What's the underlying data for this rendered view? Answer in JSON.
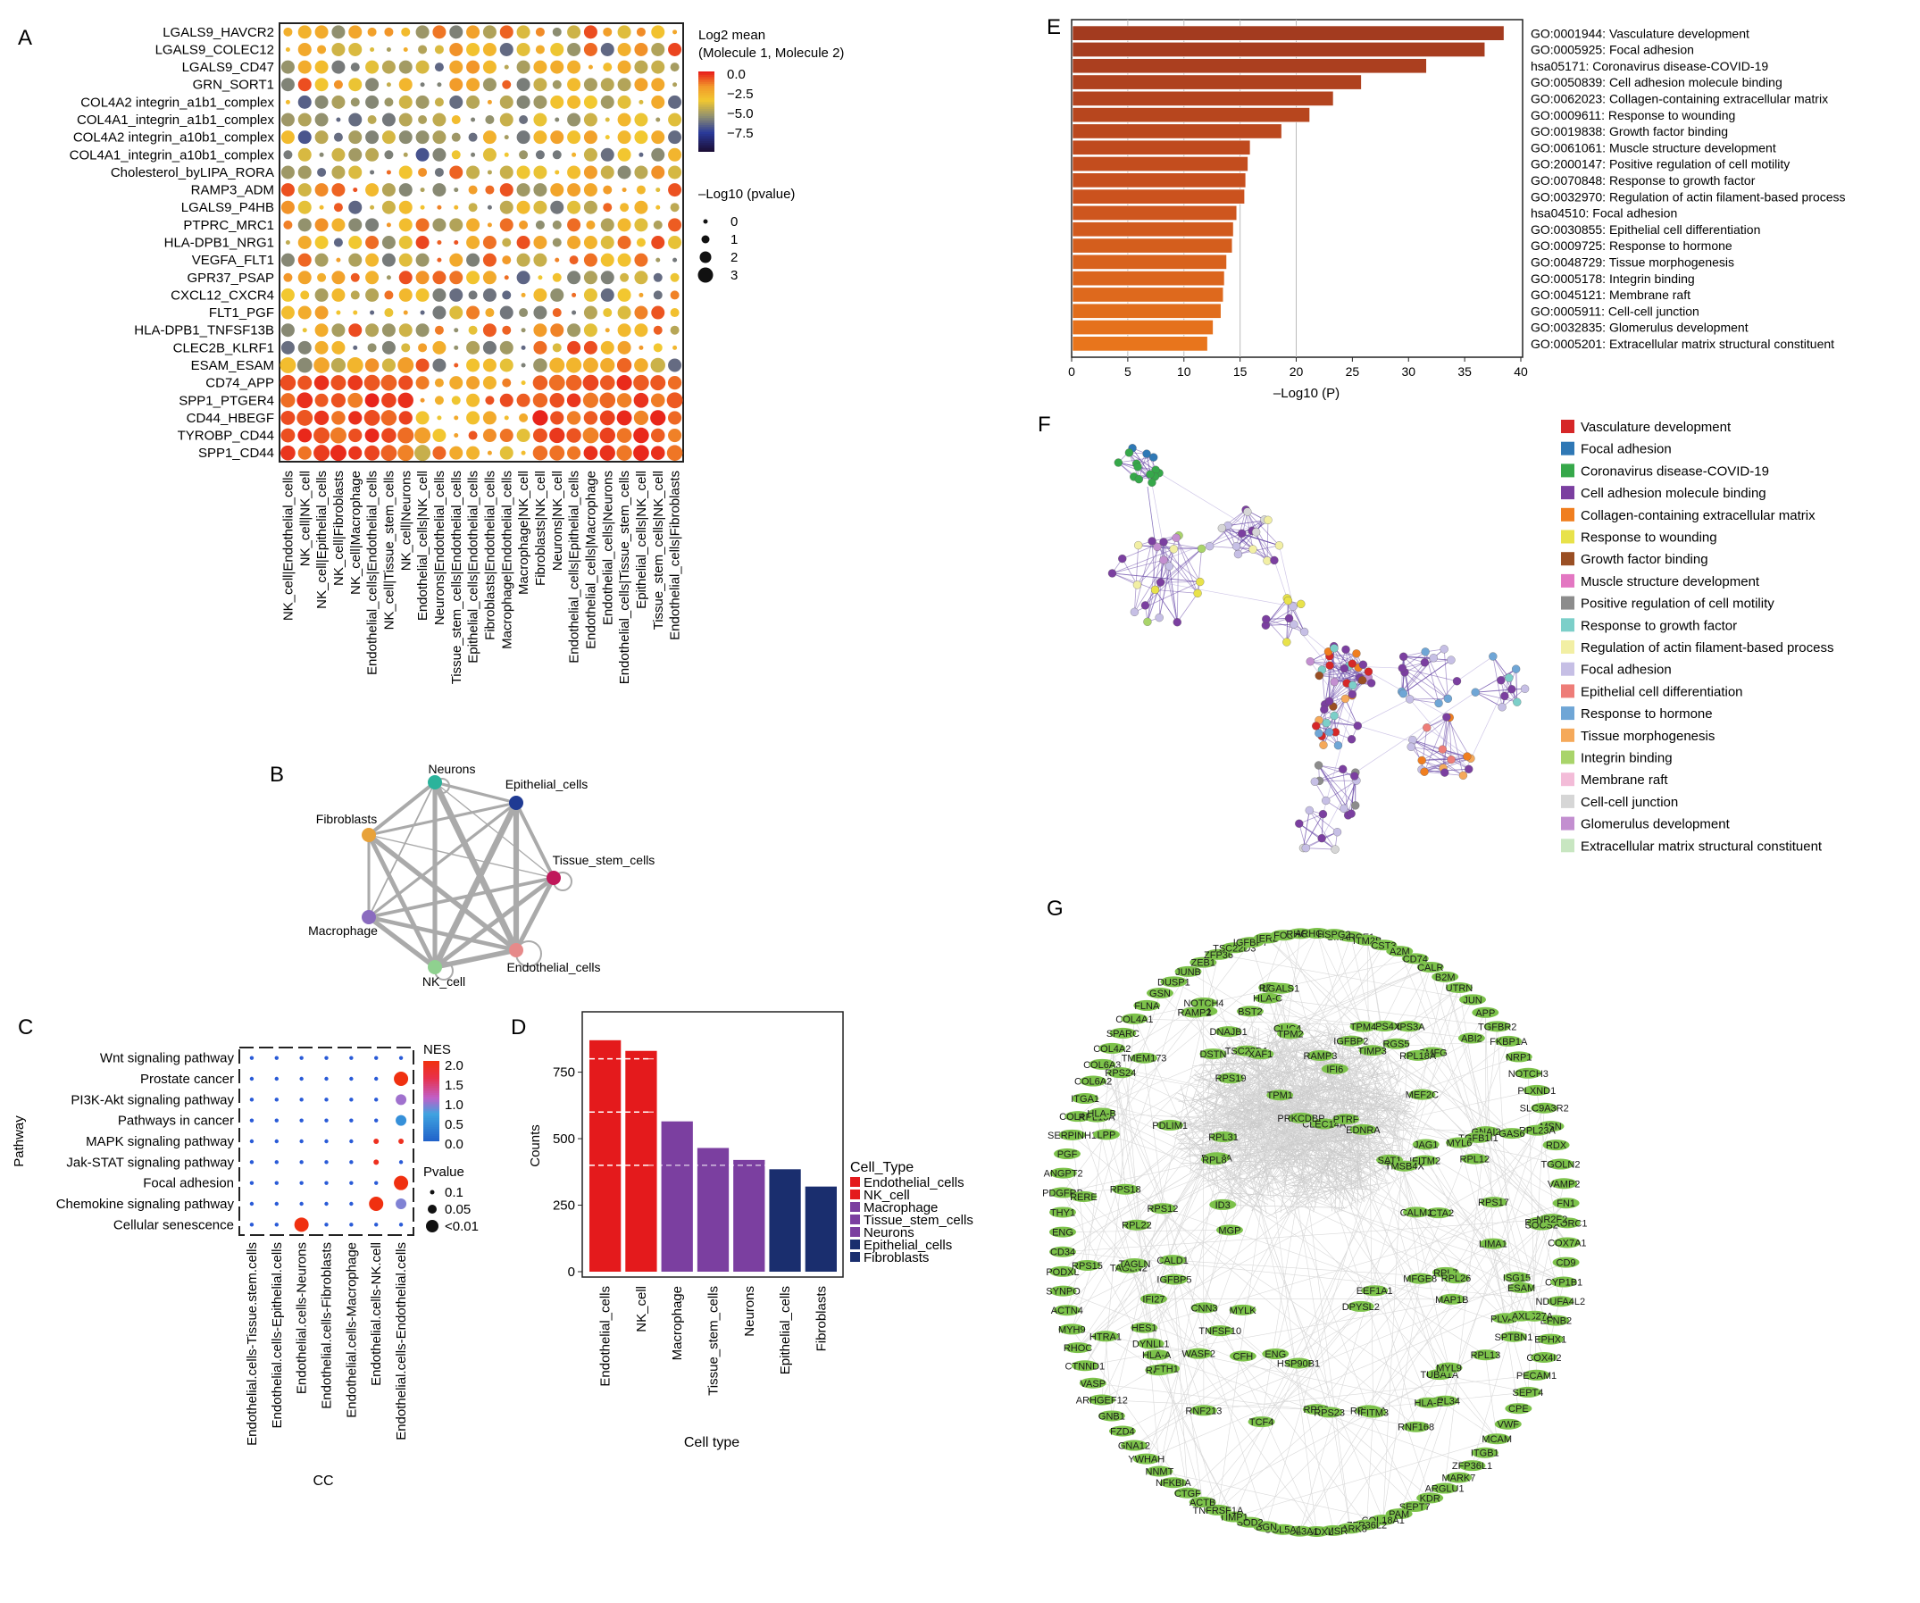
{
  "panels": {
    "A": {
      "letter": "A",
      "rows": [
        "LGALS9_HAVCR2",
        "LGALS9_COLEC12",
        "LGALS9_CD47",
        "GRN_SORT1",
        "COL4A2 integrin_a1b1_complex",
        "COL4A1_integrin_a1b1_complex",
        "COL4A2 integrin_a10b1_complex",
        "COL4A1_integrin_a10b1_complex",
        "Cholesterol_byLIPA_RORA",
        "RAMP3_ADM",
        "LGALS9_P4HB",
        "PTPRC_MRC1",
        "HLA-DPB1_NRG1",
        "VEGFA_FLT1",
        "GPR37_PSAP",
        "CXCL12_CXCR4",
        "FLT1_PGF",
        "HLA-DPB1_TNFSF13B",
        "CLEC2B_KLRF1",
        "ESAM_ESAM",
        "CD74_APP",
        "SPP1_PTGER4",
        "CD44_HBEGF",
        "TYROBP_CD44",
        "SPP1_CD44"
      ],
      "cols": [
        "NK_cell|Endothelial_cells",
        "NK_cell|NK_cell",
        "NK_cell|Epithelial_cells",
        "NK_cell|Fibroblasts",
        "NK_cell|Macrophage",
        "Endothelial_cells|Endothelial_cells",
        "NK_cell|Tissue_stem_cells",
        "NK_cell|Neurons",
        "Endothelial_cells|NK_cell",
        "Neurons|Endothelial_cells",
        "Tissue_stem_cells|Endothelial_cells",
        "Epithelial_cells|Endothelial_cells",
        "Fibroblasts|Endothelial_cells",
        "Macrophage|Endothelial_cells",
        "Macrophage|NK_cell",
        "Fibroblasts|NK_cell",
        "Neurons|NK_cell",
        "Endothelial_cells|Epithelial_cells",
        "Endothelial_cells|Macrophage",
        "Endothelial_cells|Neurons",
        "Endothelial_cells|Tissue_stem_cells",
        "Epithelial_cells|NK_cell",
        "Tissue_stem_cells|NK_cell",
        "Endothelial_cells|Fibroblasts"
      ],
      "legend_color_title_1": "Log2 mean",
      "legend_color_title_2": "(Molecule 1, Molecule 2)",
      "color_ticks": [
        "0.0",
        "−2.5",
        "−5.0",
        "−7.5"
      ],
      "size_title": "–Log10 (pvalue)",
      "size_ticks": [
        "0",
        "1",
        "2",
        "3"
      ]
    },
    "B": {
      "letter": "B",
      "nodes": [
        {
          "name": "Neurons",
          "color": "#2bb39b"
        },
        {
          "name": "Epithelial_cells",
          "color": "#1f3a93"
        },
        {
          "name": "Tissue_stem_cells",
          "color": "#c0185a"
        },
        {
          "name": "Endothelial_cells",
          "color": "#e68a8a"
        },
        {
          "name": "NK_cell",
          "color": "#8fd18f"
        },
        {
          "name": "Macrophage",
          "color": "#8a6bbf"
        },
        {
          "name": "Fibroblasts",
          "color": "#e8a23a"
        }
      ]
    },
    "C": {
      "letter": "C",
      "pathways": [
        "Wnt signaling pathway",
        "Prostate cancer",
        "PI3K-Akt signaling pathway",
        "Pathways in cancer",
        "MAPK signaling pathway",
        "Jak-STAT signaling pathway",
        "Focal adhesion",
        "Chemokine signaling pathway",
        "Cellular senescence"
      ],
      "cols": [
        "Endothelial.cells-Tissue.stem.cells",
        "Endothelial.cells-Epithelial.cells",
        "Endothelial.cells-Neurons",
        "Endothelial.cells-Fibroblasts",
        "Endothelial.cells-Macrophage",
        "Endothelial.cells-NK.cell",
        "Endothelial.cells-Endothelial.cells"
      ],
      "ylabel": "Pathway",
      "xlabel": "CC",
      "nes_title": "NES",
      "nes_ticks": [
        "2.0",
        "1.5",
        "1.0",
        "0.5",
        "0.0"
      ],
      "pval_title": "Pvalue",
      "pval_ticks": [
        "0.1",
        "0.05",
        "<0.01"
      ]
    },
    "D": {
      "letter": "D",
      "ylabel": "Counts",
      "xlabel": "Cell type",
      "yticks": [
        "0",
        "250",
        "500",
        "750"
      ],
      "legend_title": "Cell_Type"
    },
    "E": {
      "letter": "E",
      "xlabel": "–Log10 (P)",
      "xticks": [
        "0",
        "5",
        "10",
        "15",
        "20",
        "25",
        "30",
        "35",
        "40"
      ]
    },
    "F": {
      "letter": "F",
      "legend": [
        {
          "label": "Vasculature development",
          "color": "#d62728"
        },
        {
          "label": "Focal adhesion",
          "color": "#2f78b5"
        },
        {
          "label": "Coronavirus disease-COVID-19",
          "color": "#36a84a"
        },
        {
          "label": "Cell adhesion molecule binding",
          "color": "#7b3fa0"
        },
        {
          "label": "Collagen-containing extracellular matrix",
          "color": "#f07e1f"
        },
        {
          "label": "Response to wounding",
          "color": "#e8e24a"
        },
        {
          "label": "Growth factor binding",
          "color": "#9a4f24"
        },
        {
          "label": "Muscle structure development",
          "color": "#e377c2"
        },
        {
          "label": "Positive regulation of cell motility",
          "color": "#8c8c8c"
        },
        {
          "label": "Response to growth factor",
          "color": "#7ccfc9"
        },
        {
          "label": "Regulation of actin filament-based process",
          "color": "#f2efa4"
        },
        {
          "label": "Focal adhesion",
          "color": "#c6bfe5"
        },
        {
          "label": "Epithelial cell differentiation",
          "color": "#ee7d78"
        },
        {
          "label": "Response to hormone",
          "color": "#6fa6d6"
        },
        {
          "label": "Tissue morphogenesis",
          "color": "#f5a95a"
        },
        {
          "label": "Integrin binding",
          "color": "#a9d46a"
        },
        {
          "label": "Membrane raft",
          "color": "#f3bcd8"
        },
        {
          "label": "Cell-cell junction",
          "color": "#d6d6d6"
        },
        {
          "label": "Glomerulus development",
          "color": "#c38fd0"
        },
        {
          "label": "Extracellular matrix structural constituent",
          "color": "#c8e6c1"
        }
      ]
    },
    "G": {
      "letter": "G",
      "genes": [
        "SMARCE1",
        "ITM2B",
        "CST3",
        "A2M",
        "CD74",
        "CALR",
        "B2M",
        "UTRN",
        "JUN",
        "APP",
        "TGFBR2",
        "FKBP1A",
        "NRP1",
        "NOTCH3",
        "PLXND1",
        "SLC9A3R2",
        "MSN",
        "RDX",
        "TGOLN2",
        "VAMP2",
        "FN1",
        "VKORC1",
        "COX7A1",
        "CD9",
        "CYP1B1",
        "NDUFA4L2",
        "EFNB2",
        "EPHX1",
        "COX4I2",
        "PECAM1",
        "SEPT4",
        "CPE",
        "VWF",
        "MCAM",
        "ITGB1",
        "ZFP36L1",
        "MARK7",
        "ARGLU1",
        "KDR",
        "SEPT7",
        "PAM",
        "COL18A1",
        "ZFP36L2",
        "MARK8",
        "PMSR",
        "PODXL",
        "COL3A1",
        "COL5A1",
        "BGN",
        "SOD2",
        "TIMP1",
        "TNFRSF1A",
        "ACTB",
        "CTGF",
        "NFKBIA",
        "NNMT",
        "YWHAH",
        "GNA12",
        "FZD4",
        "GNB1",
        "ARHGEF12",
        "VASP",
        "CTNND1",
        "RHOC",
        "MYH9",
        "ACTN4",
        "SYNPO",
        "PODXL",
        "CD34",
        "ENG",
        "THY1",
        "PDGFRB",
        "ANGPT2",
        "PGF",
        "SERPINH1",
        "COL4A2",
        "ITGA1",
        "COL6A2",
        "COL6A3",
        "COL4A2",
        "SPARC",
        "COL4A1",
        "FLNA",
        "GSN",
        "DUSP1",
        "JUNB",
        "ZEB1",
        "ZFP36",
        "TSC22D3",
        "IGFBP7",
        "IER2",
        "FOS",
        "RHOB",
        "ARHGDIB",
        "HSPG2",
        "GNAI2",
        "HSP90B1",
        "IGFBP2",
        "GMFG",
        "TSC22D1",
        "RPL34",
        "RPS3A",
        "RPS19",
        "RPL31",
        "RPL37A",
        "RPL7A",
        "RPS27A",
        "RPL22",
        "RPS24",
        "RPLP1",
        "TAGLN2",
        "RPS6",
        "RPL18A",
        "RPL12",
        "RPL23A",
        "RPS2",
        "RPS4X",
        "RPL7",
        "RPS3",
        "RPS17",
        "RPL8",
        "RPS18",
        "RPS23",
        "RPL13",
        "RPL26",
        "RPL13A",
        "RPS12",
        "EEF1A1",
        "RPS15",
        "NOTCH4",
        "IFITM3",
        "IFITM2",
        "HLA-C",
        "HLA-E",
        "HLA-B",
        "HLA-A",
        "IFI27",
        "IFI6",
        "XAF1",
        "ISG15",
        "BST2",
        "RNF213",
        "ID1",
        "ID3",
        "TCF4",
        "DPYSL2",
        "MEF2C",
        "PLVAP",
        "SPTBN1",
        "MAP1B",
        "HES1",
        "JAG1",
        "SOCS2",
        "RNF168",
        "TMEM173",
        "IGFBP5",
        "LGALS1",
        "MGP",
        "NR2F2",
        "RERE",
        "ESAM",
        "CFH",
        "CLEC14A",
        "HTRA1",
        "SAT1",
        "TIMP3",
        "AXL",
        "GAS6",
        "PRKCDBP",
        "TAGLN",
        "CNN3",
        "ENG",
        "MFGE8",
        "PTRF",
        "ABI2",
        "TNFSF10",
        "DYNLL1",
        "WASF2",
        "TMSB4X",
        "TUBA1A",
        "CLIC4",
        "DSTN",
        "DNAJB1",
        "EDNRA",
        "RGS5",
        "RAMP2",
        "RAMP3",
        "LPP",
        "LIMA1",
        "TGFB1I1",
        "PDLIM1",
        "FTH1",
        "TPM1",
        "TPM2",
        "MYL6",
        "MYL9",
        "TPM4",
        "ACTA2",
        "CALM1",
        "MYLK",
        "CALD1"
      ]
    }
  },
  "chart_data": [
    {
      "panel": "A",
      "type": "scatter",
      "title": "",
      "xlabel": "",
      "ylabel": "",
      "legend": [
        "Log2 mean (Molecule 1, Molecule 2)",
        "–Log10 (pvalue)"
      ],
      "color_range": [
        -9,
        0
      ],
      "note_values": "bubble matrix; rows = ligand-receptor pairs, cols = interacting cell pairs; value = log2 mean expression category (0 high ... -8 low)",
      "row_profiles": [
        [
          0.9,
          0.6,
          0.4,
          0.8,
          0.5,
          0.3,
          0.5,
          0.3,
          0.2,
          0.2,
          0.2,
          0.3,
          0.3,
          0.2,
          0.7,
          0.6,
          0.6,
          0.7,
          0.5,
          0.3,
          0.6,
          0.4,
          0.5,
          0.3
        ],
        [
          0.5,
          0.6,
          0.6,
          0.5,
          0.5,
          0.4,
          0.5,
          0.4,
          0.3,
          0.2,
          0.2,
          0.3,
          0.2,
          0.3,
          0.5,
          0.6,
          0.5,
          0.4,
          0.3,
          0.2,
          0.4,
          0.3,
          0.5,
          0.3
        ],
        [
          0.6,
          0.7,
          0.6,
          0.6,
          0.6,
          0.5,
          0.6,
          0.5,
          0.4,
          0.5,
          0.4,
          0.5,
          0.4,
          0.5,
          0.6,
          0.5,
          0.6,
          0.6,
          0.5,
          0.5,
          0.6,
          0.5,
          0.5,
          0.4
        ],
        [
          0.5,
          0.5,
          0.5,
          0.4,
          0.6,
          0.5,
          0.5,
          0.5,
          0.4,
          0.6,
          0.5,
          0.5,
          0.6,
          0.5,
          0.5,
          0.6,
          0.6,
          0.6,
          0.6,
          0.6,
          0.6,
          0.5,
          0.6,
          0.5
        ],
        [
          0.6,
          0.5,
          0.4,
          0.4,
          0.5,
          0.3,
          0.5,
          0.4,
          0.3,
          0.4,
          0.3,
          0.3,
          0.4,
          0.3,
          0.5,
          0.5,
          0.5,
          0.6,
          0.5,
          0.4,
          0.5,
          0.4,
          0.5,
          0.4
        ],
        [
          0.6,
          0.5,
          0.4,
          0.4,
          0.5,
          0.3,
          0.5,
          0.4,
          0.3,
          0.4,
          0.3,
          0.3,
          0.4,
          0.3,
          0.5,
          0.5,
          0.5,
          0.6,
          0.5,
          0.4,
          0.5,
          0.4,
          0.5,
          0.4
        ],
        [
          0.5,
          0.5,
          0.4,
          0.4,
          0.4,
          0.3,
          0.4,
          0.4,
          0.3,
          0.4,
          0.3,
          0.3,
          0.4,
          0.3,
          0.5,
          0.5,
          0.5,
          0.5,
          0.5,
          0.4,
          0.5,
          0.4,
          0.5,
          0.4
        ],
        [
          0.5,
          0.5,
          0.4,
          0.4,
          0.4,
          0.3,
          0.4,
          0.4,
          0.3,
          0.4,
          0.3,
          0.3,
          0.4,
          0.3,
          0.5,
          0.5,
          0.5,
          0.5,
          0.5,
          0.4,
          0.5,
          0.4,
          0.5,
          0.4
        ]
      ]
    },
    {
      "panel": "B",
      "type": "network",
      "title": "",
      "nodes": [
        "Neurons",
        "Epithelial_cells",
        "Tissue_stem_cells",
        "Endothelial_cells",
        "NK_cell",
        "Macrophage",
        "Fibroblasts"
      ]
    },
    {
      "panel": "C",
      "type": "scatter",
      "title": "",
      "xlabel": "CC",
      "ylabel": "Pathway",
      "nes_range": [
        0,
        2.0
      ],
      "points": [
        {
          "pathway": "Prostate cancer",
          "col": "Endothelial.cells-Endothelial.cells",
          "nes": 2.0,
          "p": "<0.01"
        },
        {
          "pathway": "PI3K-Akt signaling pathway",
          "col": "Endothelial.cells-Endothelial.cells",
          "nes": 1.0,
          "p": "0.05"
        },
        {
          "pathway": "Pathways in cancer",
          "col": "Endothelial.cells-Endothelial.cells",
          "nes": 0.5,
          "p": "0.05"
        },
        {
          "pathway": "MAPK signaling pathway",
          "col": "Endothelial.cells-Endothelial.cells",
          "nes": 1.9,
          "p": "0.1"
        },
        {
          "pathway": "Jak-STAT signaling pathway",
          "col": "Endothelial.cells-NK.cell",
          "nes": 1.9,
          "p": "0.1"
        },
        {
          "pathway": "Focal adhesion",
          "col": "Endothelial.cells-Endothelial.cells",
          "nes": 2.0,
          "p": "<0.01"
        },
        {
          "pathway": "Chemokine signaling pathway",
          "col": "Endothelial.cells-NK.cell",
          "nes": 2.0,
          "p": "<0.01"
        },
        {
          "pathway": "Chemokine signaling pathway",
          "col": "Endothelial.cells-Endothelial.cells",
          "nes": 0.9,
          "p": "0.05"
        },
        {
          "pathway": "Cellular senescence",
          "col": "Endothelial.cells-Neurons",
          "nes": 2.0,
          "p": "<0.01"
        },
        {
          "pathway": "MAPK signaling pathway",
          "col": "Endothelial.cells-NK.cell",
          "nes": 1.9,
          "p": "0.1"
        }
      ]
    },
    {
      "panel": "D",
      "type": "bar",
      "title": "",
      "xlabel": "Cell type",
      "ylabel": "Counts",
      "categories": [
        "Endothelial_cells",
        "NK_cell",
        "Macrophage",
        "Tissue_stem_cells",
        "Neurons",
        "Epithelial_cells",
        "Fibroblasts"
      ],
      "values": [
        870,
        830,
        565,
        465,
        420,
        385,
        320
      ],
      "colors": [
        "#e41a1c",
        "#e41a1c",
        "#7b3fa0",
        "#7b3fa0",
        "#7b3fa0",
        "#1a2e6e",
        "#1a2e6e"
      ],
      "legend": [
        "Endothelial_cells",
        "NK_cell",
        "Macrophage",
        "Tissue_stem_cells",
        "Neurons",
        "Epithelial_cells",
        "Fibroblasts"
      ],
      "ylim": [
        0,
        950
      ],
      "grid": true,
      "dashed_lines": [
        400,
        600,
        800
      ]
    },
    {
      "panel": "E",
      "type": "bar",
      "orientation": "horizontal",
      "title": "",
      "xlabel": "–Log10 (P)",
      "xlim": [
        0,
        40
      ],
      "categories": [
        "GO:0001944: Vasculature development",
        "GO:0005925: Focal adhesion",
        "hsa05171: Coronavirus disease-COVID-19",
        "GO:0050839: Cell adhesion molecule binding",
        "GO:0062023: Collagen-containing extracellular matrix",
        "GO:0009611: Response to wounding",
        "GO:0019838: Growth factor binding",
        "GO:0061061: Muscle structure development",
        "GO:2000147: Positive regulation of cell motility",
        "GO:0070848: Response to growth factor",
        "GO:0032970: Regulation of actin filament-based process",
        "hsa04510: Focal adhesion",
        "GO:0030855: Epithelial cell differentiation",
        "GO:0009725: Response to hormone",
        "GO:0048729: Tissue morphogenesis",
        "GO:0005178: Integrin binding",
        "GO:0045121: Membrane raft",
        "GO:0005911: Cell-cell junction",
        "GO:0032835: Glomerulus development",
        "GO:0005201: Extracellular matrix structural constituent"
      ],
      "values": [
        38.5,
        36.8,
        31.6,
        25.8,
        23.3,
        21.2,
        18.7,
        15.9,
        15.7,
        15.5,
        15.4,
        14.7,
        14.4,
        14.3,
        13.8,
        13.6,
        13.5,
        13.3,
        12.6,
        12.1
      ]
    },
    {
      "panel": "F",
      "type": "network",
      "title": "",
      "legend": [
        "Vasculature development",
        "Focal adhesion",
        "Coronavirus disease-COVID-19",
        "Cell adhesion molecule binding",
        "Collagen-containing extracellular matrix",
        "Response to wounding",
        "Growth factor binding",
        "Muscle structure development",
        "Positive regulation of cell motility",
        "Response to growth factor",
        "Regulation of actin filament-based process",
        "Focal adhesion",
        "Epithelial cell differentiation",
        "Response to hormone",
        "Tissue morphogenesis",
        "Integrin binding",
        "Membrane raft",
        "Cell-cell junction",
        "Glomerulus development",
        "Extracellular matrix structural constituent"
      ]
    },
    {
      "panel": "G",
      "type": "network",
      "title": "",
      "note": "protein-protein interaction network; gene labels on green nodes"
    }
  ]
}
